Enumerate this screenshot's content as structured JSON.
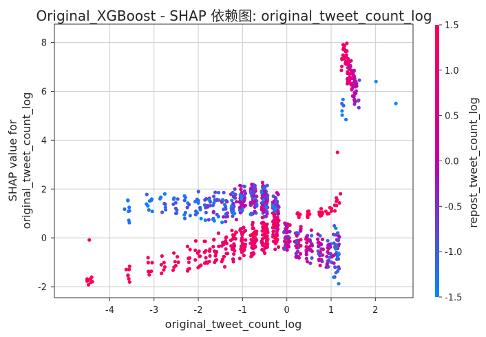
{
  "chart_data": {
    "type": "scatter",
    "title": "Original_XGBoost - SHAP 依赖图: original_tweet_count_log",
    "xlabel": "original_tweet_count_log",
    "ylabel_lines": [
      "SHAP value for",
      "original_tweet_count_log"
    ],
    "colorbar_label": "repost_tweet_count_log",
    "xlim": [
      -5.25,
      2.85
    ],
    "ylim": [
      -2.45,
      8.75
    ],
    "x_ticks": [
      -4,
      -3,
      -2,
      -1,
      0,
      1,
      2
    ],
    "x_tick_labels": [
      "-4",
      "-3",
      "-2",
      "-1",
      "0",
      "1",
      "2"
    ],
    "y_ticks": [
      -2,
      0,
      2,
      4,
      6,
      8
    ],
    "y_tick_labels": [
      "-2",
      "0",
      "2",
      "4",
      "6",
      "8"
    ],
    "color_range": [
      -1.5,
      1.5
    ],
    "color_ticks": [
      -1.5,
      -1.0,
      -0.5,
      0.0,
      0.5,
      1.0,
      1.5
    ],
    "color_tick_labels": [
      "-1.5",
      "-1.0",
      "-0.5",
      "0.0",
      "0.5",
      "1.0",
      "1.5"
    ],
    "colormap": [
      "#008afb",
      "#c100b0",
      "#ff0052"
    ],
    "grid": true,
    "clusters": [
      {
        "x": -4.45,
        "y": [
          -2.0,
          -1.55
        ],
        "c": [
          1.5,
          1.5
        ],
        "n": 8
      },
      {
        "x": -4.45,
        "y": [
          -0.12,
          -0.05
        ],
        "c": [
          1.5,
          1.5
        ],
        "n": 1
      },
      {
        "x": -3.6,
        "y": [
          0.6,
          1.7
        ],
        "c": [
          -1.5,
          -1.0
        ],
        "n": 8
      },
      {
        "x": -3.6,
        "y": [
          -1.9,
          -0.9
        ],
        "c": [
          1.2,
          1.5
        ],
        "n": 7
      },
      {
        "x": -3.1,
        "y": [
          0.9,
          1.9
        ],
        "c": [
          -1.5,
          -1.0
        ],
        "n": 8
      },
      {
        "x": -3.1,
        "y": [
          -1.7,
          -0.8
        ],
        "c": [
          1.2,
          1.5
        ],
        "n": 7
      },
      {
        "x": -2.8,
        "y": [
          0.9,
          1.9
        ],
        "c": [
          -1.5,
          -0.8
        ],
        "n": 8
      },
      {
        "x": -2.8,
        "y": [
          -1.6,
          -0.7
        ],
        "c": [
          1.2,
          1.5
        ],
        "n": 6
      },
      {
        "x": -2.5,
        "y": [
          0.8,
          1.9
        ],
        "c": [
          -1.5,
          -0.8
        ],
        "n": 9
      },
      {
        "x": -2.5,
        "y": [
          -1.5,
          -0.5
        ],
        "c": [
          1.2,
          1.5
        ],
        "n": 7
      },
      {
        "x": -2.25,
        "y": [
          0.7,
          1.9
        ],
        "c": [
          -1.5,
          -0.7
        ],
        "n": 10
      },
      {
        "x": -2.25,
        "y": [
          -1.6,
          -0.3
        ],
        "c": [
          1.1,
          1.5
        ],
        "n": 8
      },
      {
        "x": -2.0,
        "y": [
          0.7,
          1.9
        ],
        "c": [
          -1.5,
          -0.6
        ],
        "n": 12
      },
      {
        "x": -2.0,
        "y": [
          -1.5,
          -0.1
        ],
        "c": [
          1.0,
          1.5
        ],
        "n": 10
      },
      {
        "x": -1.8,
        "y": [
          0.6,
          2.0
        ],
        "c": [
          -1.5,
          -0.4
        ],
        "n": 14
      },
      {
        "x": -1.8,
        "y": [
          -1.4,
          0.1
        ],
        "c": [
          1.0,
          1.5
        ],
        "n": 12
      },
      {
        "x": -1.6,
        "y": [
          0.5,
          2.0
        ],
        "c": [
          -1.5,
          -0.3
        ],
        "n": 16
      },
      {
        "x": -1.6,
        "y": [
          -1.3,
          0.2
        ],
        "c": [
          1.0,
          1.5
        ],
        "n": 14
      },
      {
        "x": -1.4,
        "y": [
          0.5,
          2.0
        ],
        "c": [
          -1.5,
          -0.2
        ],
        "n": 18
      },
      {
        "x": -1.4,
        "y": [
          -1.2,
          0.3
        ],
        "c": [
          0.9,
          1.5
        ],
        "n": 16
      },
      {
        "x": -1.2,
        "y": [
          0.6,
          2.2
        ],
        "c": [
          -1.5,
          0.2
        ],
        "n": 22
      },
      {
        "x": -1.2,
        "y": [
          -1.1,
          0.5
        ],
        "c": [
          0.8,
          1.5
        ],
        "n": 20
      },
      {
        "x": -1.0,
        "y": [
          0.8,
          2.3
        ],
        "c": [
          -1.5,
          0.4
        ],
        "n": 40
      },
      {
        "x": -1.0,
        "y": [
          -1.0,
          0.6
        ],
        "c": [
          0.8,
          1.5
        ],
        "n": 30
      },
      {
        "x": -0.75,
        "y": [
          0.9,
          2.35
        ],
        "c": [
          -1.5,
          0.5
        ],
        "n": 60
      },
      {
        "x": -0.75,
        "y": [
          -0.9,
          0.7
        ],
        "c": [
          0.8,
          1.5
        ],
        "n": 45
      },
      {
        "x": -0.5,
        "y": [
          0.8,
          2.3
        ],
        "c": [
          -1.5,
          0.5
        ],
        "n": 70
      },
      {
        "x": -0.5,
        "y": [
          -0.8,
          0.9
        ],
        "c": [
          0.8,
          1.5
        ],
        "n": 55
      },
      {
        "x": -0.25,
        "y": [
          0.2,
          1.9
        ],
        "c": [
          -1.5,
          0.3
        ],
        "n": 55
      },
      {
        "x": -0.25,
        "y": [
          -0.6,
          1.1
        ],
        "c": [
          0.8,
          1.5
        ],
        "n": 45
      },
      {
        "x": 0.0,
        "y": [
          -0.7,
          0.8
        ],
        "c": [
          -1.0,
          1.5
        ],
        "n": 45
      },
      {
        "x": 0.25,
        "y": [
          -1.0,
          0.6
        ],
        "c": [
          -1.2,
          1.2
        ],
        "n": 35
      },
      {
        "x": 0.25,
        "y": [
          0.8,
          1.1
        ],
        "c": [
          1.3,
          1.5
        ],
        "n": 6
      },
      {
        "x": 0.5,
        "y": [
          -1.1,
          0.4
        ],
        "c": [
          -1.3,
          1.0
        ],
        "n": 30
      },
      {
        "x": 0.5,
        "y": [
          0.8,
          1.15
        ],
        "c": [
          1.3,
          1.5
        ],
        "n": 8
      },
      {
        "x": 0.75,
        "y": [
          -1.2,
          0.3
        ],
        "c": [
          -1.4,
          0.8
        ],
        "n": 25
      },
      {
        "x": 0.75,
        "y": [
          0.8,
          1.2
        ],
        "c": [
          1.3,
          1.5
        ],
        "n": 8
      },
      {
        "x": 0.95,
        "y": [
          -1.5,
          0.2
        ],
        "c": [
          -1.5,
          0.5
        ],
        "n": 22
      },
      {
        "x": 0.95,
        "y": [
          0.9,
          1.3
        ],
        "c": [
          1.3,
          1.5
        ],
        "n": 6
      },
      {
        "x": 1.12,
        "y": [
          -1.9,
          0.8
        ],
        "c": [
          -1.5,
          0.0
        ],
        "n": 40
      },
      {
        "x": 1.15,
        "y": [
          1.0,
          1.9
        ],
        "c": [
          1.2,
          1.5
        ],
        "n": 8
      },
      {
        "x": 1.15,
        "y": [
          3.5,
          3.5
        ],
        "c": [
          1.5,
          1.5
        ],
        "n": 1
      },
      {
        "x": 1.3,
        "y": [
          6.8,
          8.2
        ],
        "c": [
          0.8,
          1.5
        ],
        "n": 20
      },
      {
        "x": 1.4,
        "y": [
          5.9,
          7.6
        ],
        "c": [
          0.3,
          1.3
        ],
        "n": 25
      },
      {
        "x": 1.5,
        "y": [
          5.8,
          7.2
        ],
        "c": [
          -0.3,
          1.0
        ],
        "n": 20
      },
      {
        "x": 1.58,
        "y": [
          5.1,
          6.6
        ],
        "c": [
          -1.0,
          0.5
        ],
        "n": 18
      },
      {
        "x": 1.3,
        "y": [
          4.8,
          5.9
        ],
        "c": [
          -1.5,
          -0.8
        ],
        "n": 6
      },
      {
        "x": 2.02,
        "y": [
          6.4,
          6.4
        ],
        "c": [
          -1.5,
          -1.5
        ],
        "n": 1
      },
      {
        "x": 2.45,
        "y": [
          5.5,
          5.5
        ],
        "c": [
          -1.5,
          -1.5
        ],
        "n": 1
      }
    ]
  }
}
